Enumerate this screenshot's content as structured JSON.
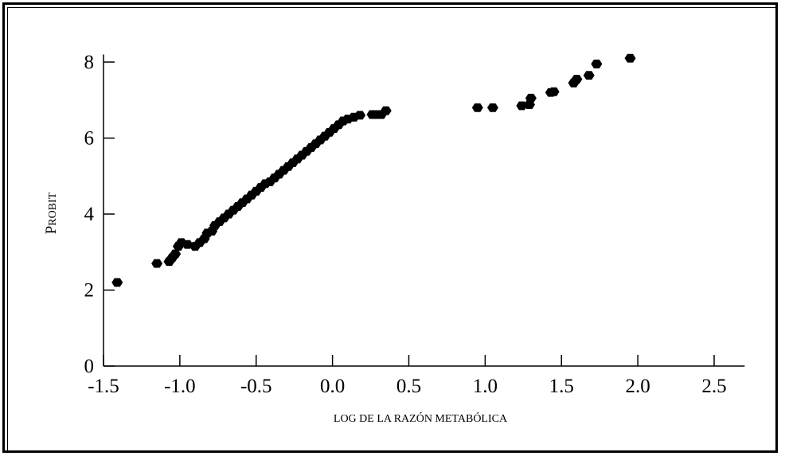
{
  "chart_data": {
    "type": "scatter",
    "xlabel": "LOG DE LA RAZÓN METABÓLICA",
    "ylabel_first": "P",
    "ylabel_rest": "ROBIT",
    "xlim": [
      -1.5,
      2.7
    ],
    "ylim": [
      0,
      8.2
    ],
    "x_ticks": [
      -1.5,
      -1.0,
      -0.5,
      0.0,
      0.5,
      1.0,
      1.5,
      2.0,
      2.5
    ],
    "x_tick_labels": [
      "-1.5",
      "-1.0",
      "-0.5",
      "0.0",
      "0.5",
      "1.0",
      "1.5",
      "2.0",
      "2.5"
    ],
    "y_ticks": [
      0,
      2,
      4,
      6,
      8
    ],
    "y_tick_labels": [
      "0",
      "2",
      "4",
      "6",
      "8"
    ],
    "grid": false,
    "marker_color": "#000000",
    "points": [
      [
        -1.41,
        2.2
      ],
      [
        -1.15,
        2.7
      ],
      [
        -1.07,
        2.75
      ],
      [
        -1.05,
        2.85
      ],
      [
        -1.03,
        2.95
      ],
      [
        -1.01,
        3.15
      ],
      [
        -0.99,
        3.25
      ],
      [
        -0.95,
        3.2
      ],
      [
        -0.9,
        3.15
      ],
      [
        -0.87,
        3.25
      ],
      [
        -0.84,
        3.35
      ],
      [
        -0.82,
        3.5
      ],
      [
        -0.79,
        3.55
      ],
      [
        -0.77,
        3.7
      ],
      [
        -0.74,
        3.8
      ],
      [
        -0.71,
        3.9
      ],
      [
        -0.68,
        4.0
      ],
      [
        -0.65,
        4.1
      ],
      [
        -0.62,
        4.2
      ],
      [
        -0.59,
        4.3
      ],
      [
        -0.56,
        4.4
      ],
      [
        -0.53,
        4.5
      ],
      [
        -0.5,
        4.6
      ],
      [
        -0.47,
        4.7
      ],
      [
        -0.44,
        4.8
      ],
      [
        -0.41,
        4.85
      ],
      [
        -0.38,
        4.95
      ],
      [
        -0.35,
        5.05
      ],
      [
        -0.32,
        5.15
      ],
      [
        -0.29,
        5.25
      ],
      [
        -0.26,
        5.35
      ],
      [
        -0.23,
        5.45
      ],
      [
        -0.2,
        5.55
      ],
      [
        -0.17,
        5.65
      ],
      [
        -0.14,
        5.75
      ],
      [
        -0.11,
        5.85
      ],
      [
        -0.08,
        5.95
      ],
      [
        -0.05,
        6.05
      ],
      [
        -0.02,
        6.15
      ],
      [
        0.01,
        6.25
      ],
      [
        0.04,
        6.35
      ],
      [
        0.07,
        6.45
      ],
      [
        0.1,
        6.5
      ],
      [
        0.14,
        6.55
      ],
      [
        0.18,
        6.6
      ],
      [
        0.26,
        6.62
      ],
      [
        0.29,
        6.62
      ],
      [
        0.32,
        6.62
      ],
      [
        0.35,
        6.72
      ],
      [
        0.95,
        6.8
      ],
      [
        1.05,
        6.8
      ],
      [
        1.24,
        6.85
      ],
      [
        1.29,
        6.88
      ],
      [
        1.3,
        7.05
      ],
      [
        1.43,
        7.2
      ],
      [
        1.45,
        7.22
      ],
      [
        1.58,
        7.45
      ],
      [
        1.6,
        7.55
      ],
      [
        1.68,
        7.65
      ],
      [
        1.73,
        7.95
      ],
      [
        1.95,
        8.1
      ]
    ]
  }
}
